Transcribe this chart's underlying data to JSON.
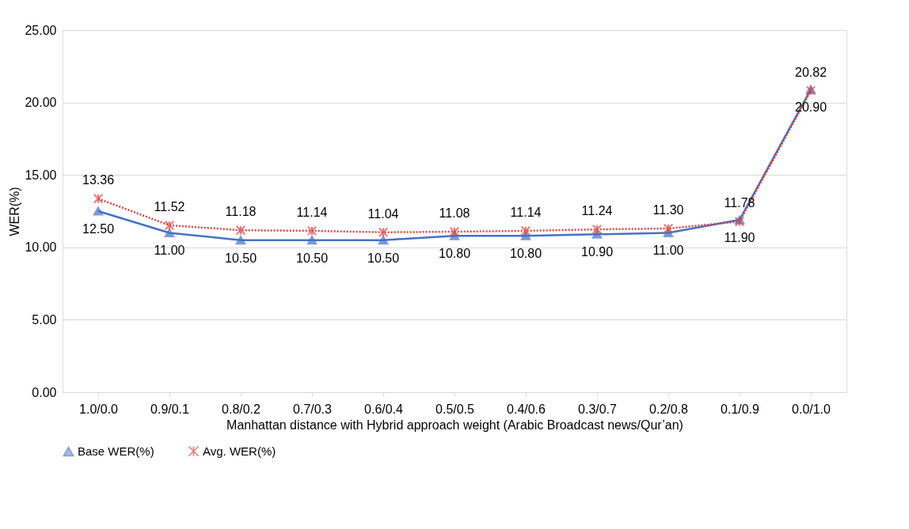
{
  "chart_data": {
    "type": "line",
    "categories": [
      "1.0/0.0",
      "0.9/0.1",
      "0.8/0.2",
      "0.7/0.3",
      "0.6/0.4",
      "0.5/0.5",
      "0.4/0.6",
      "0.3/0.7",
      "0.2/0.8",
      "0.1/0.9",
      "0.0/1.0"
    ],
    "xlabel": "Manhattan distance with Hybrid approach weight (Arabic Broadcast news/Qur’an)",
    "ylabel": "WER(%)",
    "ylim": [
      0,
      25
    ],
    "yticks": [
      {
        "value": 0,
        "label": "0.00"
      },
      {
        "value": 5,
        "label": "5.00"
      },
      {
        "value": 10,
        "label": "10.00"
      },
      {
        "value": 15,
        "label": "15.00"
      },
      {
        "value": 20,
        "label": "20.00"
      },
      {
        "value": 25,
        "label": "25.00"
      }
    ],
    "grid": "y",
    "legend": "bottom",
    "series": [
      {
        "name": "Base WER(%)",
        "color": "#4472c4",
        "marker": "triangle",
        "line_style": "solid",
        "values": [
          12.5,
          11.0,
          10.5,
          10.5,
          10.5,
          10.8,
          10.8,
          10.9,
          11.0,
          11.9,
          20.9
        ],
        "value_labels": [
          "12.50",
          "11.00",
          "10.50",
          "10.50",
          "10.50",
          "10.80",
          "10.80",
          "10.90",
          "11.00",
          "11.90",
          "20.90"
        ]
      },
      {
        "name": "Avg. WER(%)",
        "color": "#e0403c",
        "marker": "cross",
        "line_style": "dotted",
        "values": [
          13.36,
          11.52,
          11.18,
          11.14,
          11.04,
          11.08,
          11.14,
          11.24,
          11.3,
          11.78,
          20.82
        ],
        "value_labels": [
          "13.36",
          "11.52",
          "11.18",
          "11.14",
          "11.04",
          "11.08",
          "11.14",
          "11.24",
          "11.30",
          "11.78",
          "20.82"
        ]
      }
    ]
  }
}
